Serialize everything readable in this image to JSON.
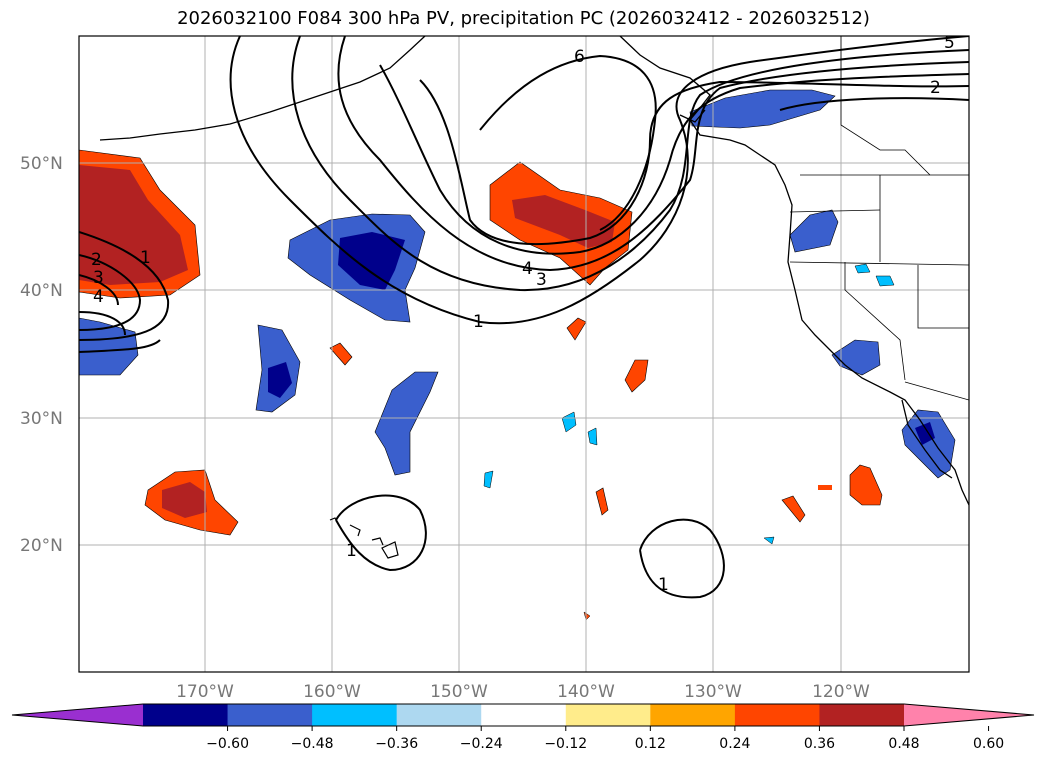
{
  "title": "2026032100 F084 300 hPa PV, precipitation PC (2026032412 - 2026032512)",
  "latitude_labels": [
    "50°N",
    "40°N",
    "30°N",
    "20°N"
  ],
  "longitude_labels": [
    "170°W",
    "160°W",
    "150°W",
    "140°W",
    "130°W",
    "120°W"
  ],
  "colorbar": {
    "labels": [
      "−0.60",
      "−0.48",
      "−0.36",
      "−0.24",
      "−0.12",
      "0.12",
      "0.24",
      "0.36",
      "0.48",
      "0.60"
    ],
    "colors": [
      "#9a2fd0",
      "#00008b",
      "#3a5fcd",
      "#00bfff",
      "#add8f0",
      "#ffffff",
      "#ffec8b",
      "#ffa500",
      "#ff4500",
      "#b22222",
      "#ff82ab"
    ]
  },
  "pv_contour_labels": [
    "6",
    "5",
    "4",
    "3",
    "2",
    "1",
    "1",
    "2",
    "3",
    "4",
    "1",
    "1"
  ]
}
